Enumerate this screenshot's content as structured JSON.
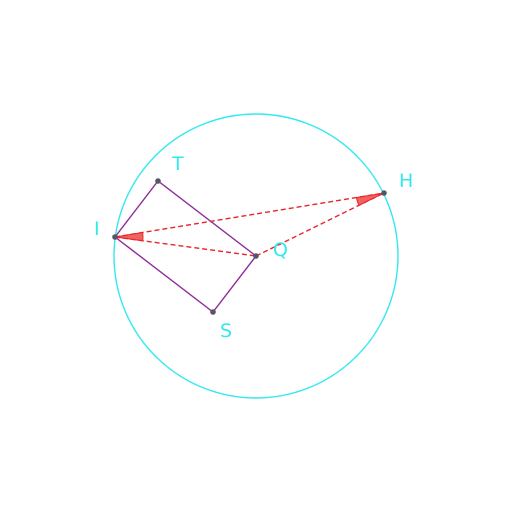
{
  "diagram": {
    "colors": {
      "circle": "#33e8ee",
      "rectangle": "#8e2e9a",
      "dashed": "#e8262b",
      "angle_fill": "#ef4747",
      "point": "#555566",
      "label": "#33e8ee"
    },
    "points": {
      "I": {
        "label": "I"
      },
      "T": {
        "label": "T"
      },
      "H": {
        "label": "H"
      },
      "Q": {
        "label": "Q"
      },
      "S": {
        "label": "S"
      }
    }
  }
}
